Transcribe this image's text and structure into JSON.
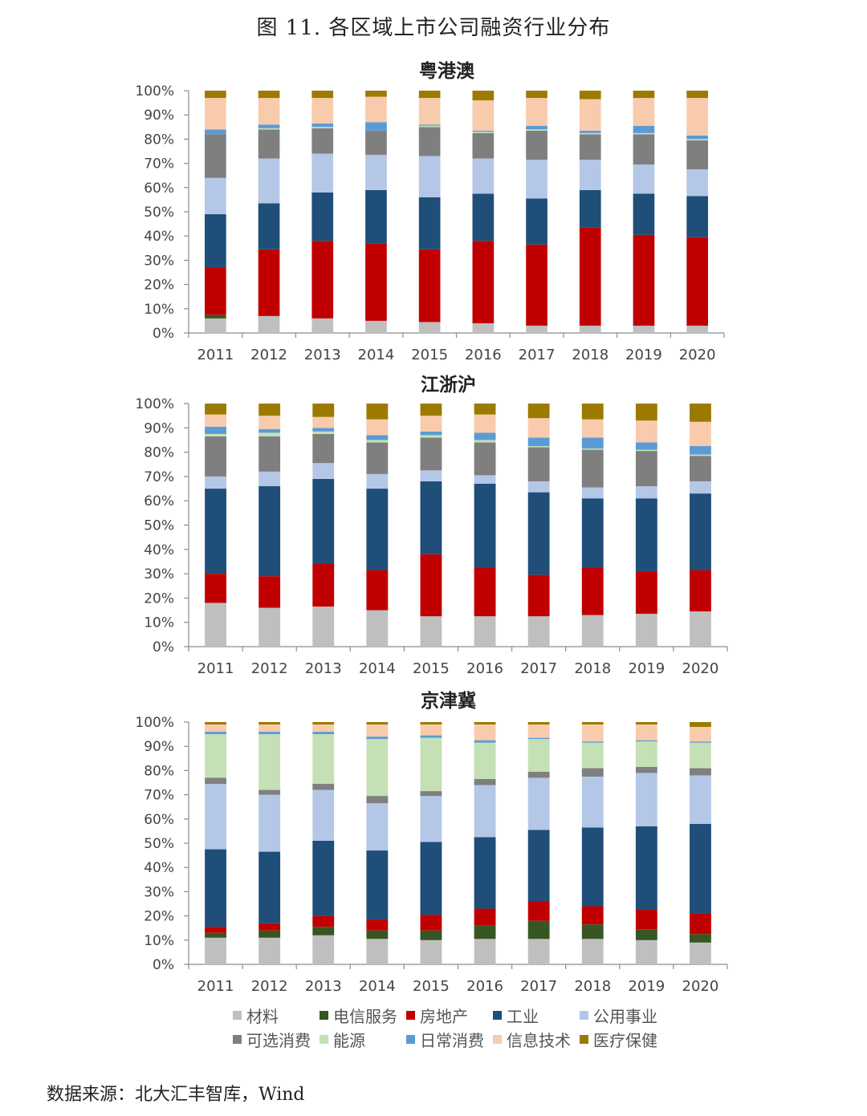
{
  "figure_title": "图 11.  各区域上市公司融资行业分布",
  "source": "数据来源：北大汇丰智库，Wind",
  "chart_data": [
    {
      "type": "stacked_bar",
      "title": "粤港澳",
      "categories": [
        "2011",
        "2012",
        "2013",
        "2014",
        "2015",
        "2016",
        "2017",
        "2018",
        "2019",
        "2020"
      ],
      "yticks": [
        "0%",
        "10%",
        "20%",
        "30%",
        "40%",
        "50%",
        "60%",
        "70%",
        "80%",
        "90%",
        "100%"
      ],
      "ylim": [
        0,
        100
      ],
      "series": [
        {
          "name": "材料",
          "values": [
            6,
            7,
            6,
            5,
            4.5,
            4,
            3,
            3,
            3,
            3
          ]
        },
        {
          "name": "电信服务",
          "values": [
            1.5,
            0,
            0,
            0,
            0,
            0,
            0,
            0,
            0,
            0
          ]
        },
        {
          "name": "房地产",
          "values": [
            19.5,
            27.5,
            32,
            32,
            30,
            34,
            33.5,
            40.5,
            37.5,
            36.5
          ]
        },
        {
          "name": "工业",
          "values": [
            22,
            19,
            20,
            22,
            21.5,
            19.5,
            19,
            15.5,
            17,
            17
          ]
        },
        {
          "name": "公用事业",
          "values": [
            15,
            18.5,
            16,
            14.5,
            17,
            14.5,
            16,
            12.5,
            12,
            11
          ]
        },
        {
          "name": "可选消费",
          "values": [
            18,
            12,
            10.5,
            10,
            12,
            10.5,
            12,
            10.5,
            12.5,
            12
          ]
        },
        {
          "name": "能源",
          "values": [
            0,
            0.5,
            0.5,
            0,
            0.5,
            0.5,
            0.5,
            0.5,
            0.5,
            0.5
          ]
        },
        {
          "name": "日常消费",
          "values": [
            2,
            1.5,
            1.5,
            3.5,
            0.5,
            0.5,
            1.5,
            1,
            3,
            1.5
          ]
        },
        {
          "name": "信息技术",
          "values": [
            13,
            11,
            10.5,
            10.5,
            11,
            12.5,
            11.5,
            13,
            11.5,
            15.5
          ]
        },
        {
          "name": "医疗保健",
          "values": [
            3,
            3,
            3,
            2.5,
            3,
            4,
            3,
            3.5,
            3,
            3
          ]
        }
      ]
    },
    {
      "type": "stacked_bar",
      "title": "江浙沪",
      "categories": [
        "2011",
        "2012",
        "2013",
        "2014",
        "2015",
        "2016",
        "2017",
        "2018",
        "2019",
        "2020"
      ],
      "yticks": [
        "0%",
        "10%",
        "20%",
        "30%",
        "40%",
        "50%",
        "60%",
        "70%",
        "80%",
        "90%",
        "100%"
      ],
      "ylim": [
        0,
        100
      ],
      "series": [
        {
          "name": "材料",
          "values": [
            18,
            16,
            16.5,
            15,
            12.5,
            12.5,
            12.5,
            13,
            13.5,
            14.5
          ]
        },
        {
          "name": "电信服务",
          "values": [
            0,
            0,
            0,
            0,
            0,
            0,
            0,
            0,
            0,
            0
          ]
        },
        {
          "name": "房地产",
          "values": [
            12,
            13,
            17.5,
            16.5,
            25.5,
            20,
            17,
            19.5,
            17.5,
            17
          ]
        },
        {
          "name": "工业",
          "values": [
            35,
            37,
            35,
            33.5,
            30,
            34.5,
            34,
            28.5,
            30,
            31.5
          ]
        },
        {
          "name": "公用事业",
          "values": [
            5,
            6,
            6.5,
            6,
            4.5,
            3.5,
            4.5,
            4.5,
            5,
            5
          ]
        },
        {
          "name": "可选消费",
          "values": [
            16.5,
            14.5,
            12,
            13,
            13.5,
            13.5,
            14,
            15.5,
            14.5,
            10.5
          ]
        },
        {
          "name": "能源",
          "values": [
            1,
            1.5,
            1,
            1,
            1,
            1,
            0.5,
            0.5,
            0.5,
            0.5
          ]
        },
        {
          "name": "日常消费",
          "values": [
            3,
            1.5,
            1.5,
            2,
            1.5,
            3,
            3.5,
            4.5,
            3,
            3.5
          ]
        },
        {
          "name": "信息技术",
          "values": [
            5,
            5.5,
            4.5,
            6.5,
            6.5,
            7.5,
            8,
            7.5,
            9,
            10
          ]
        },
        {
          "name": "医疗保健",
          "values": [
            4.5,
            5,
            5.5,
            6.5,
            5,
            4.5,
            6,
            6.5,
            7,
            7.5
          ]
        }
      ]
    },
    {
      "type": "stacked_bar",
      "title": "京津冀",
      "categories": [
        "2011",
        "2012",
        "2013",
        "2014",
        "2015",
        "2016",
        "2017",
        "2018",
        "2019",
        "2020"
      ],
      "yticks": [
        "0%",
        "10%",
        "20%",
        "30%",
        "40%",
        "50%",
        "60%",
        "70%",
        "80%",
        "90%",
        "100%"
      ],
      "ylim": [
        0,
        100
      ],
      "series": [
        {
          "name": "材料",
          "values": [
            11,
            11,
            12,
            10.5,
            10,
            10.5,
            10.5,
            10.5,
            10,
            9
          ]
        },
        {
          "name": "电信服务",
          "values": [
            2,
            3,
            3.5,
            3.5,
            4,
            5.5,
            7.5,
            6,
            4.5,
            3.5
          ]
        },
        {
          "name": "房地产",
          "values": [
            2.5,
            3,
            4.5,
            4.5,
            6.5,
            7,
            8,
            7.5,
            8,
            8.5
          ]
        },
        {
          "name": "工业",
          "values": [
            32,
            29.5,
            31,
            28.5,
            30,
            29.5,
            29.5,
            32.5,
            34.5,
            37
          ]
        },
        {
          "name": "公用事业",
          "values": [
            27,
            23.5,
            21,
            19.5,
            19,
            21.5,
            21.5,
            21,
            22,
            20
          ]
        },
        {
          "name": "可选消费",
          "values": [
            2.5,
            2,
            2.5,
            3,
            2,
            2.5,
            2.5,
            3.5,
            2.5,
            3
          ]
        },
        {
          "name": "能源",
          "values": [
            18,
            23,
            20.5,
            23.5,
            22,
            15,
            13.5,
            10.5,
            10.5,
            10.5
          ]
        },
        {
          "name": "日常消费",
          "values": [
            1,
            1,
            1,
            1,
            1,
            1,
            0.5,
            0.5,
            0.5,
            0.5
          ]
        },
        {
          "name": "信息技术",
          "values": [
            3,
            3,
            3,
            5,
            4.5,
            6.5,
            5.5,
            7,
            6.5,
            6
          ]
        },
        {
          "name": "医疗保健",
          "values": [
            1,
            1,
            1,
            1,
            1,
            1,
            1,
            1,
            1,
            2
          ]
        }
      ]
    }
  ],
  "legend": {
    "rows": [
      [
        "材料",
        "电信服务",
        "房地产",
        "工业",
        "公用事业"
      ],
      [
        "可选消费",
        "能源",
        "日常消费",
        "信息技术",
        "医疗保健"
      ]
    ],
    "colors": {
      "材料": "#bfbfbf",
      "电信服务": "#375623",
      "房地产": "#c00000",
      "工业": "#1f4e79",
      "公用事业": "#b4c7e7",
      "可选消费": "#7f7f7f",
      "能源": "#c5e0b4",
      "日常消费": "#5b9bd5",
      "信息技术": "#f8cbad",
      "医疗保健": "#9c7a00"
    }
  }
}
